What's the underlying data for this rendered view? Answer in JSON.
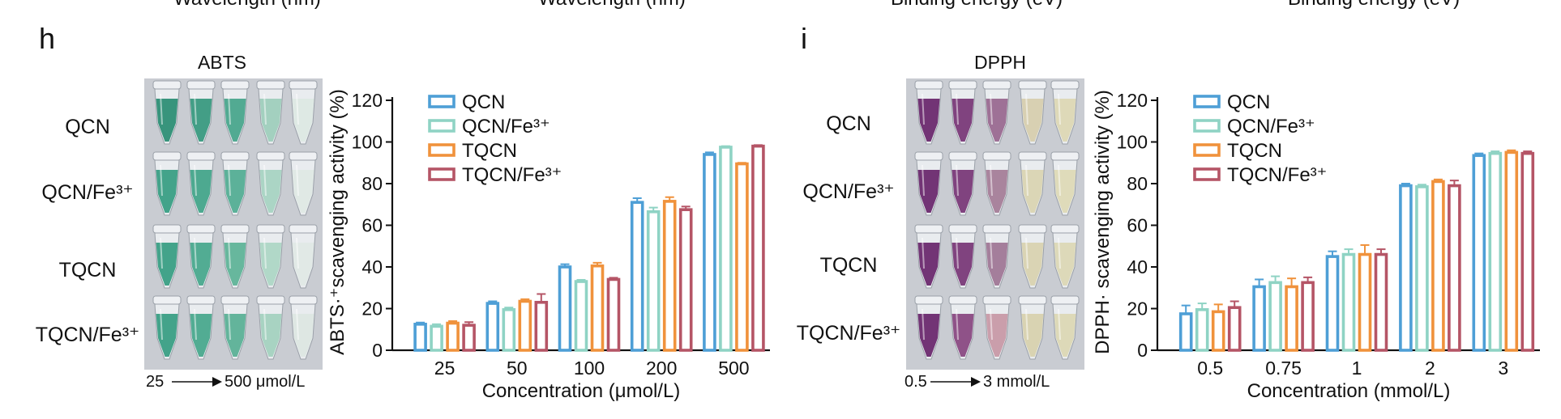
{
  "top_fragments": [
    "Wavelength (nm)",
    "Wavelength (nm)",
    "Binding energy (eV)",
    "Binding energy (eV)"
  ],
  "panel_h": {
    "letter": "h",
    "photo": {
      "title": "ABTS",
      "row_labels": [
        "QCN",
        "QCN/Fe³⁺",
        "TQCN",
        "TQCN/Fe³⁺"
      ],
      "range_start": "25",
      "range_end": "500 μmol/L",
      "tube_colors": [
        [
          "#2e8f75",
          "#3a9a80",
          "#4aa78c",
          "#9fcfbc",
          "#dde9e3"
        ],
        [
          "#3a9f84",
          "#44a58a",
          "#54ae93",
          "#a8d4c2",
          "#dfe9e4"
        ],
        [
          "#3a9f84",
          "#4aa98d",
          "#60b498",
          "#aed7c5",
          "#e0e9e5"
        ],
        [
          "#3a9f84",
          "#4aa98d",
          "#5cb196",
          "#a4d2bf",
          "#dde7e2"
        ]
      ]
    },
    "legend": [
      "QCN",
      "QCN/Fe³⁺",
      "TQCN",
      "TQCN/Fe³⁺"
    ]
  },
  "panel_i": {
    "letter": "i",
    "photo": {
      "title": "DPPH",
      "row_labels": [
        "QCN",
        "QCN/Fe³⁺",
        "TQCN",
        "TQCN/Fe³⁺"
      ],
      "range_start": "0.5",
      "range_end": "3 mmol/L",
      "tube_colors": [
        [
          "#6c2a6e",
          "#7a3a78",
          "#9a6a90",
          "#d7cfae",
          "#ddd8b4"
        ],
        [
          "#6c2a6e",
          "#7a3a78",
          "#a57e98",
          "#dad5b2",
          "#dedab6"
        ],
        [
          "#6c2a6e",
          "#7a3a78",
          "#a07896",
          "#d9d3b0",
          "#dcd8b5"
        ],
        [
          "#6c2a6e",
          "#8a4a82",
          "#c89aa6",
          "#d8d2ae",
          "#dcd8b4"
        ]
      ]
    },
    "legend": [
      "QCN",
      "QCN/Fe³⁺",
      "TQCN",
      "TQCN/Fe³⁺"
    ]
  },
  "series_colors": [
    "#4e9fd6",
    "#8fd3c4",
    "#f0923c",
    "#b55566"
  ],
  "chart_data": [
    {
      "type": "bar",
      "xlabel": "Concentration (μmol/L)",
      "ylabel": "ABTS·⁺scavenging activity (%)",
      "categories": [
        "25",
        "50",
        "100",
        "200",
        "500"
      ],
      "ylim": [
        0,
        120
      ],
      "yticks": [
        0,
        20,
        40,
        60,
        80,
        100,
        120
      ],
      "series": [
        {
          "name": "QCN",
          "values": [
            12.5,
            22.5,
            40,
            71,
            94
          ],
          "errors": [
            0.8,
            1,
            1.3,
            2,
            1
          ]
        },
        {
          "name": "QCN/Fe³⁺",
          "values": [
            11.5,
            19.5,
            33,
            66.5,
            97.5
          ],
          "errors": [
            1,
            1,
            0.8,
            2,
            0.5
          ]
        },
        {
          "name": "TQCN",
          "values": [
            13,
            23.5,
            40.5,
            71.5,
            89.5
          ],
          "errors": [
            1,
            1,
            1.5,
            2,
            0.5
          ]
        },
        {
          "name": "TQCN/Fe³⁺",
          "values": [
            12,
            23,
            34,
            67.5,
            98
          ],
          "errors": [
            1.5,
            4,
            0.8,
            1.5,
            0.5
          ]
        }
      ]
    },
    {
      "type": "bar",
      "xlabel": "Concentration (mmol/L)",
      "ylabel": "DPPH· scavenging activity (%)",
      "categories": [
        "0.5",
        "0.75",
        "1",
        "2",
        "3"
      ],
      "ylim": [
        0,
        120
      ],
      "yticks": [
        0,
        20,
        40,
        60,
        80,
        100,
        120
      ],
      "series": [
        {
          "name": "QCN",
          "values": [
            17.5,
            30.5,
            45,
            79,
            93.5
          ],
          "errors": [
            4,
            3.5,
            2.5,
            1,
            1
          ]
        },
        {
          "name": "QCN/Fe³⁺",
          "values": [
            19.5,
            32.5,
            46,
            78.5,
            94.5
          ],
          "errors": [
            3,
            3,
            2.5,
            1,
            1
          ]
        },
        {
          "name": "TQCN",
          "values": [
            18.5,
            30.5,
            46,
            81,
            95
          ],
          "errors": [
            3.5,
            4,
            4.5,
            1,
            1
          ]
        },
        {
          "name": "TQCN/Fe³⁺",
          "values": [
            20.5,
            32.5,
            46,
            79,
            94.5
          ],
          "errors": [
            3,
            2.5,
            2.5,
            2.5,
            1
          ]
        }
      ]
    }
  ]
}
